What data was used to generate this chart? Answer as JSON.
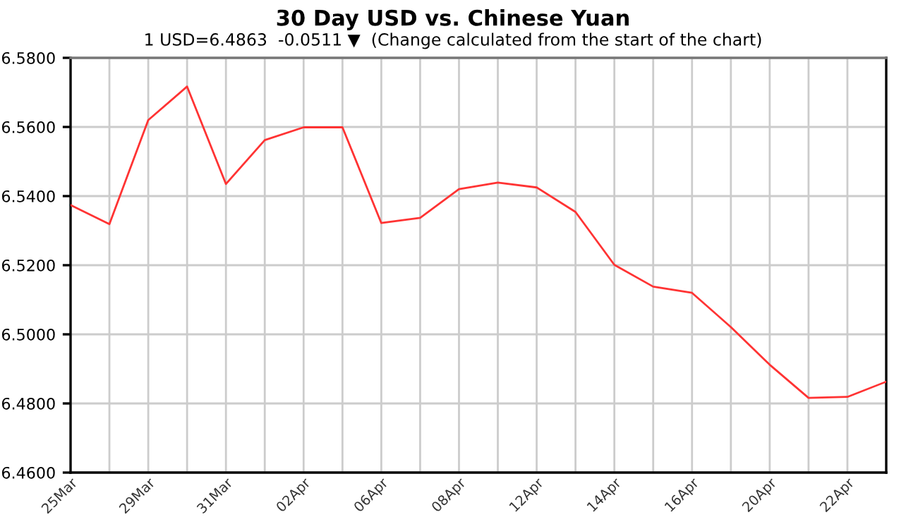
{
  "chart_data": {
    "type": "line",
    "title": "30 Day USD vs. Chinese Yuan",
    "subtitle": "1 USD=6.4863  -0.0511 ▼  (Change calculated from the start of the chart)",
    "categories": [
      "25Mar",
      null,
      "29Mar",
      null,
      "31Mar",
      null,
      "02Apr",
      null,
      "06Apr",
      null,
      "08Apr",
      null,
      "12Apr",
      null,
      "14Apr",
      null,
      "16Apr",
      null,
      "20Apr",
      null,
      "22Apr",
      null
    ],
    "series": [
      {
        "color": "#ff3333",
        "values": [
          6.5374,
          6.5319,
          6.562,
          6.5717,
          6.5435,
          6.5562,
          6.5599,
          6.5599,
          6.5322,
          6.5337,
          6.542,
          6.5439,
          6.5425,
          6.5354,
          6.5201,
          6.5138,
          6.512,
          6.5021,
          6.4912,
          6.4816,
          6.4819,
          6.4863
        ]
      }
    ],
    "ylim": [
      6.46,
      6.58
    ],
    "yticks": [
      {
        "value": 6.46,
        "label": "6.4600"
      },
      {
        "value": 6.48,
        "label": "6.4800"
      },
      {
        "value": 6.5,
        "label": "6.5000"
      },
      {
        "value": 6.52,
        "label": "6.5200"
      },
      {
        "value": 6.54,
        "label": "6.5400"
      },
      {
        "value": 6.56,
        "label": "6.5600"
      },
      {
        "value": 6.58,
        "label": "6.5800"
      }
    ],
    "grid": true,
    "legend": false,
    "marker": "none",
    "line_style": "solid"
  }
}
